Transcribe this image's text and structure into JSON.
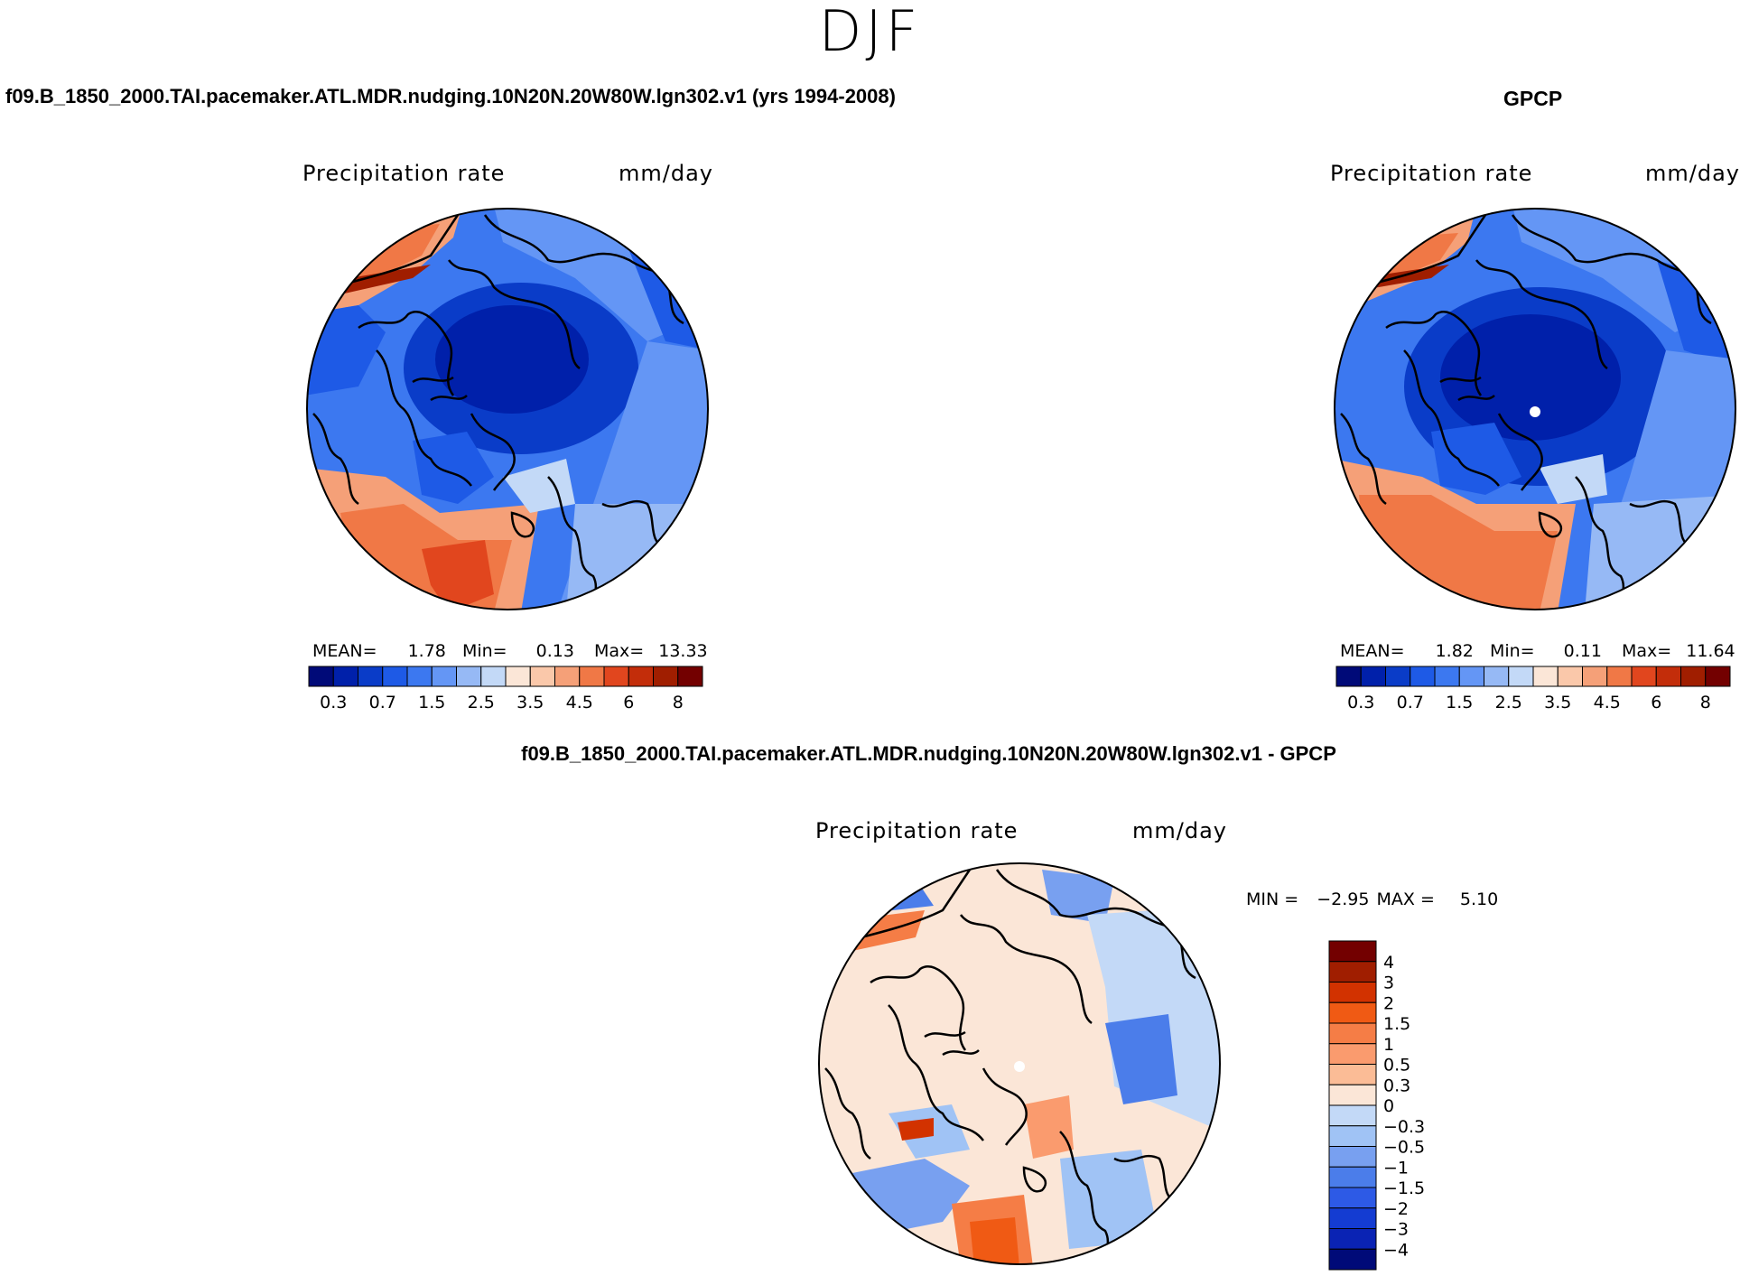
{
  "figure": {
    "season": "DJF"
  },
  "panels": [
    {
      "id": "model",
      "case_title": "f09.B_1850_2000.TAI.pacemaker.ATL.MDR.nudging.10N20N.20W80W.lgn302.v1 (yrs 1994-2008)",
      "variable": "Precipitation rate",
      "units": "mm/day",
      "stats": {
        "mean_label": "MEAN=",
        "mean": "1.78",
        "min_label": "Min=",
        "min": "0.13",
        "max_label": "Max=",
        "max": "13.33"
      }
    },
    {
      "id": "obs",
      "case_title": "GPCP",
      "variable": "Precipitation rate",
      "units": "mm/day",
      "stats": {
        "mean_label": "MEAN=",
        "mean": "1.82",
        "min_label": "Min=",
        "min": "0.11",
        "max_label": "Max=",
        "max": "11.64"
      }
    },
    {
      "id": "diff",
      "case_title": "f09.B_1850_2000.TAI.pacemaker.ATL.MDR.nudging.10N20N.20W80W.lgn302.v1 - GPCP",
      "variable": "Precipitation rate",
      "units": "mm/day",
      "stats": {
        "min_label": "MIN =",
        "min": "−2.95",
        "max_label": "MAX =",
        "max": "5.10"
      }
    }
  ],
  "colorbars": {
    "abs": {
      "colors": [
        "#000a78",
        "#0020aa",
        "#0a3cc8",
        "#1e5ae6",
        "#3c78f0",
        "#6496f5",
        "#96b9f5",
        "#c3d9f7",
        "#fbe6d7",
        "#fac8aa",
        "#f5a078",
        "#f07846",
        "#e1461e",
        "#c32d0a",
        "#a01e00",
        "#730000"
      ],
      "tick_labels": [
        "0.3",
        "0.7",
        "1.5",
        "2.5",
        "3.5",
        "4.5",
        "6",
        "8"
      ]
    },
    "diff": {
      "colors": [
        "#730000",
        "#a01e00",
        "#d23200",
        "#f05a14",
        "#f57d46",
        "#fa9b6e",
        "#fbbc96",
        "#fbe6d7",
        "#c3d9f7",
        "#a0c3f5",
        "#78a0f0",
        "#4b7dea",
        "#2d5ae6",
        "#143cd2",
        "#0a23b4",
        "#000a78"
      ],
      "tick_labels": [
        "4",
        "3",
        "2",
        "1.5",
        "1",
        "0.5",
        "0.3",
        "0",
        "−0.3",
        "−0.5",
        "−1",
        "−1.5",
        "−2",
        "−3",
        "−4"
      ]
    }
  },
  "maps": {
    "projection": "polar stereographic, North Pole",
    "field": "precipitation rate"
  }
}
